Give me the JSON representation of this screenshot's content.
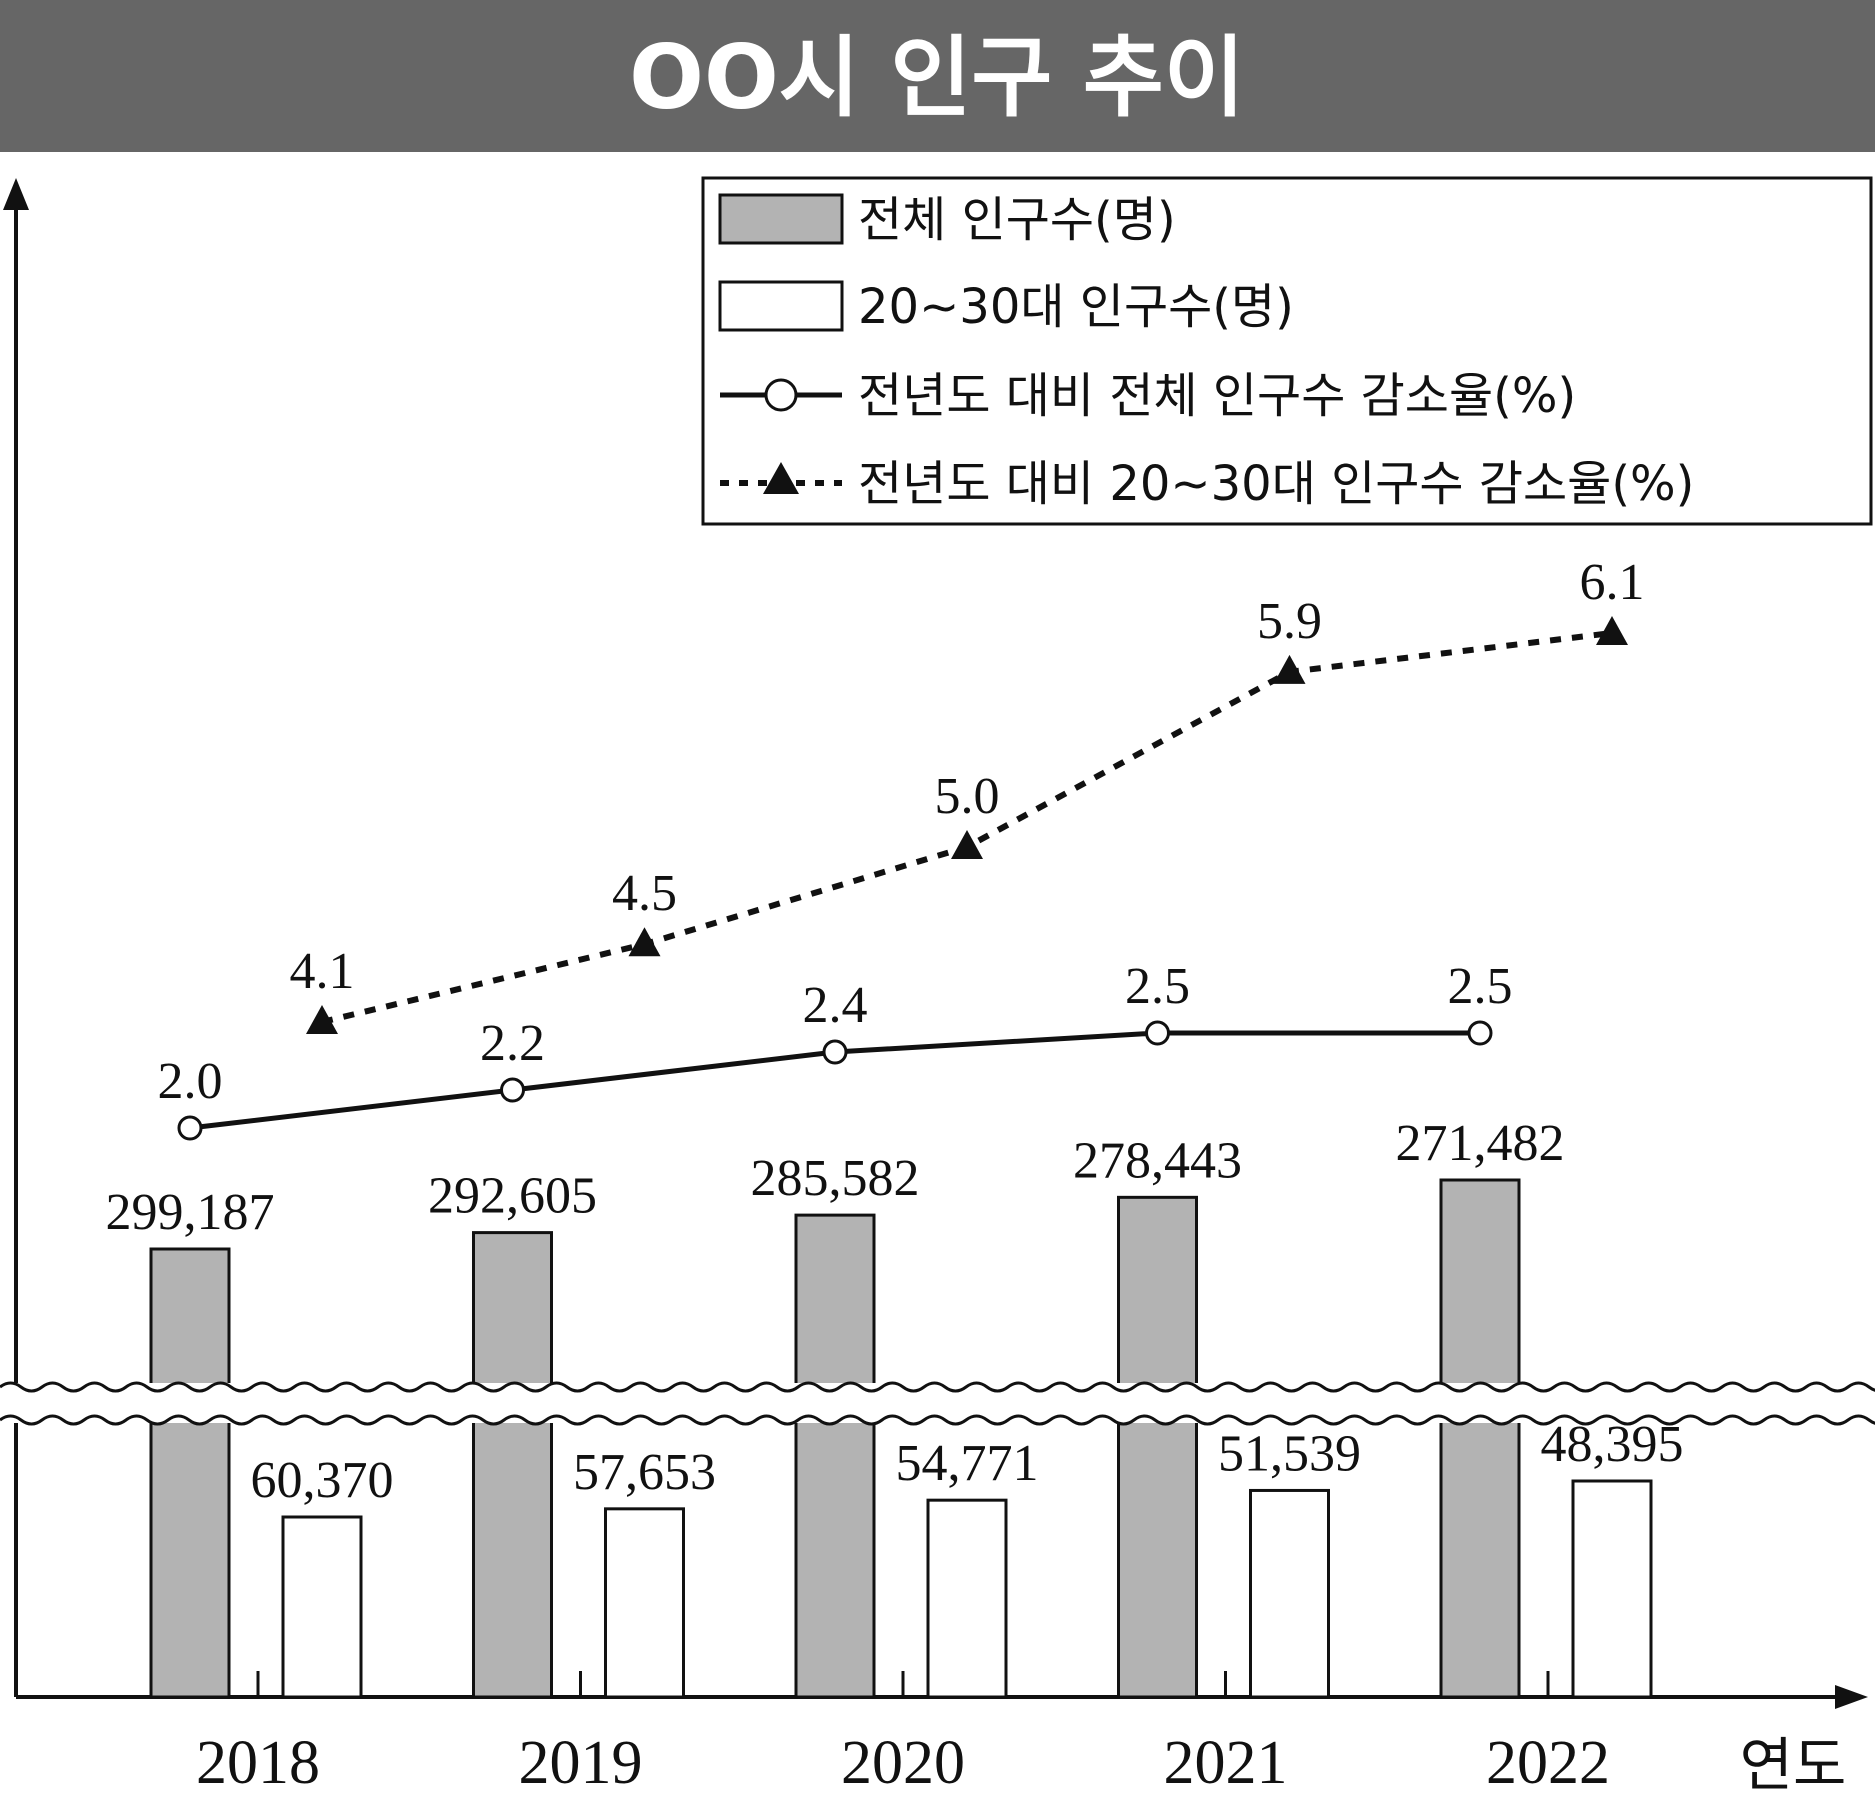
{
  "colors": {
    "title_band": "#666666",
    "total_bar": "#b3b3b3",
    "young_bar": "#ffffff",
    "ink": "#111111"
  },
  "chart_data": {
    "type": "bar",
    "title": "OO시 인구 추이",
    "xlabel": "연도",
    "categories": [
      "2018",
      "2019",
      "2020",
      "2021",
      "2022"
    ],
    "axis_break": true,
    "legend_position": "top-right",
    "series": [
      {
        "name": "전체 인구수(명)",
        "type": "bar",
        "values": [
          299187,
          292605,
          285582,
          278443,
          271482
        ],
        "labels": [
          "299,187",
          "292,605",
          "285,582",
          "278,443",
          "271,482"
        ]
      },
      {
        "name": "20~30대 인구수(명)",
        "type": "bar",
        "values": [
          60370,
          57653,
          54771,
          51539,
          48395
        ],
        "labels": [
          "60,370",
          "57,653",
          "54,771",
          "51,539",
          "48,395"
        ]
      },
      {
        "name": "전년도 대비 전체 인구수 감소율(%)",
        "type": "line",
        "marker": "circle",
        "values": [
          2.0,
          2.2,
          2.4,
          2.5,
          2.5
        ],
        "labels": [
          "2.0",
          "2.2",
          "2.4",
          "2.5",
          "2.5"
        ]
      },
      {
        "name": "전년도 대비 20~30대 인구수 감소율(%)",
        "type": "line",
        "marker": "triangle",
        "dashed": true,
        "values": [
          4.1,
          4.5,
          5.0,
          5.9,
          6.1
        ],
        "labels": [
          "4.1",
          "4.5",
          "5.0",
          "5.9",
          "6.1"
        ]
      }
    ]
  }
}
